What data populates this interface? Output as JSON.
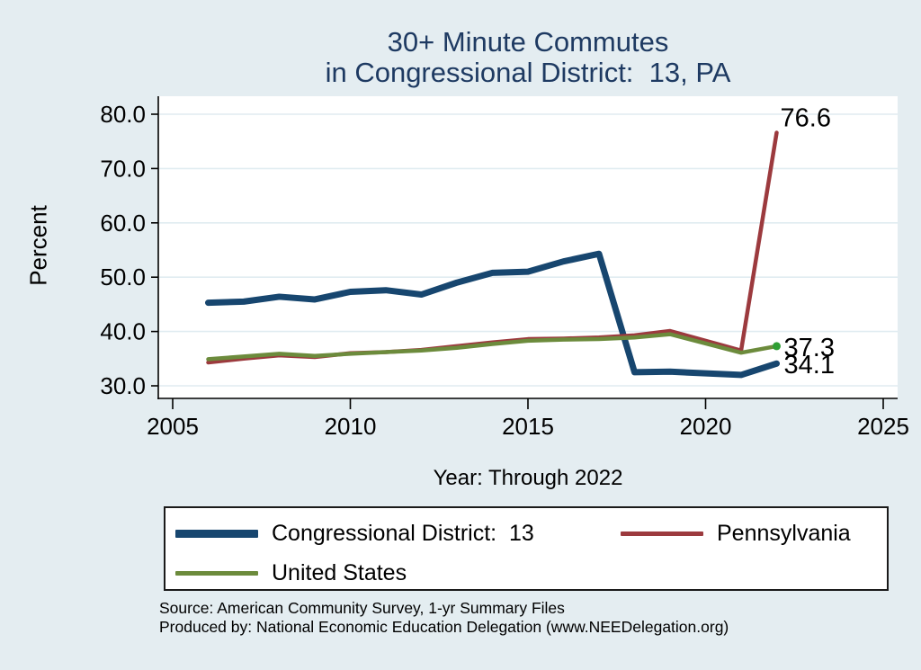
{
  "title": {
    "line1": "30+ Minute Commutes",
    "line2": "in Congressional District:  13, PA",
    "color": "#1e3a62"
  },
  "axes": {
    "x_title": "Year: Through 2022",
    "y_title": "Percent"
  },
  "legend": {
    "items": [
      {
        "id": "cd13",
        "label": "Congressional District:  13",
        "color": "#17466f",
        "swatch_height": 9
      },
      {
        "id": "pa",
        "label": "Pennsylvania",
        "color": "#9c3a3e",
        "swatch_height": 5
      },
      {
        "id": "us",
        "label": "United States",
        "color": "#6c8b3c",
        "swatch_height": 5
      }
    ]
  },
  "source": {
    "line1": "Source: American Community Survey, 1-yr Summary Files",
    "line2": "Produced by: National Economic Education Delegation (www.NEEDelegation.org)"
  },
  "chart_data": {
    "type": "line",
    "title": "30+ Minute Commutes in Congressional District:  13, PA",
    "xlabel": "Year: Through 2022",
    "ylabel": "Percent",
    "xlim": [
      2004.6,
      2025.4
    ],
    "ylim": [
      27,
      83
    ],
    "grid": "horizontal-only",
    "grid_color": "#e0ecf1",
    "plot_background": "#ffffff",
    "legend_position": "bottom",
    "xticks": [
      2005,
      2010,
      2015,
      2020,
      2025
    ],
    "xtick_labels": [
      "2005",
      "2010",
      "2015",
      "2020",
      "2025"
    ],
    "yticks": [
      30,
      40,
      50,
      60,
      70,
      80
    ],
    "ytick_labels": [
      "30.0",
      "40.0",
      "50.0",
      "60.0",
      "70.0",
      "80.0"
    ],
    "x": [
      2006,
      2007,
      2008,
      2009,
      2010,
      2011,
      2012,
      2013,
      2014,
      2015,
      2016,
      2017,
      2018,
      2019,
      2020,
      2021,
      2022
    ],
    "series": [
      {
        "name": "Congressional District:  13",
        "color": "#17466f",
        "line_width": 7,
        "values": [
          45.3,
          45.5,
          46.4,
          45.9,
          47.3,
          47.6,
          46.8,
          49.0,
          50.8,
          51.0,
          52.9,
          54.3,
          32.5,
          32.6,
          null,
          32.0,
          34.1
        ]
      },
      {
        "name": "Pennsylvania",
        "color": "#9c3a3e",
        "line_width": 4.5,
        "values": [
          34.3,
          35.0,
          35.6,
          35.3,
          36.0,
          36.2,
          36.6,
          37.3,
          38.0,
          38.6,
          38.7,
          38.9,
          39.3,
          40.1,
          null,
          36.5,
          76.6
        ]
      },
      {
        "name": "United States",
        "color": "#6c8b3c",
        "line_width": 4.5,
        "end_marker_color": "#2f9e33",
        "values": [
          34.9,
          35.4,
          35.9,
          35.5,
          35.9,
          36.2,
          36.5,
          37.0,
          37.7,
          38.3,
          38.5,
          38.6,
          38.9,
          39.5,
          null,
          36.1,
          37.3
        ]
      }
    ],
    "annotations": [
      {
        "text": "76.6",
        "x": 2022,
        "y": 76.6,
        "placement": "above-end"
      },
      {
        "text": "37.3",
        "x": 2022,
        "y": 37.3,
        "placement": "right-of-end"
      },
      {
        "text": "34.1",
        "x": 2022,
        "y": 34.1,
        "placement": "right-of-end"
      }
    ]
  }
}
